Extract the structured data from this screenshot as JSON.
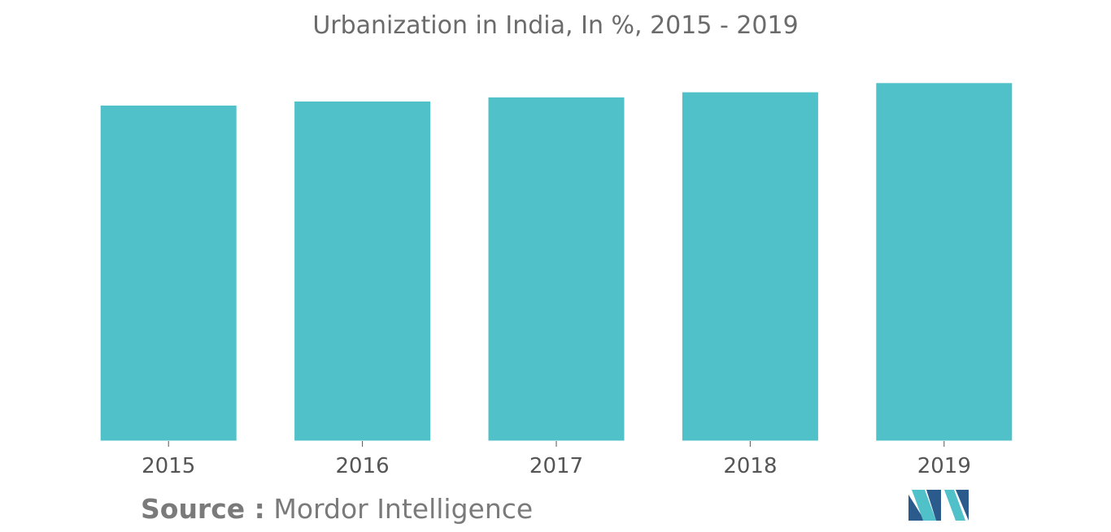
{
  "chart_data": {
    "type": "bar",
    "title": "Urbanization in India, In %, 2015 - 2019",
    "categories": [
      "2015",
      "2016",
      "2017",
      "2018",
      "2019"
    ],
    "values": [
      32.8,
      33.2,
      33.6,
      34.1,
      35.0
    ],
    "ylim": [
      0,
      35.5
    ],
    "xlabel": "",
    "ylabel": "",
    "grid": false,
    "colors": {
      "bar": "#50c1c9",
      "axis": "#555555",
      "text": "#6b6b6b"
    }
  },
  "source": {
    "label": "Source :",
    "value": "Mordor Intelligence"
  },
  "logo": {
    "icon": "mordor-intelligence-logo-icon",
    "colors": [
      "#2b5b8c",
      "#50c1c9"
    ]
  }
}
